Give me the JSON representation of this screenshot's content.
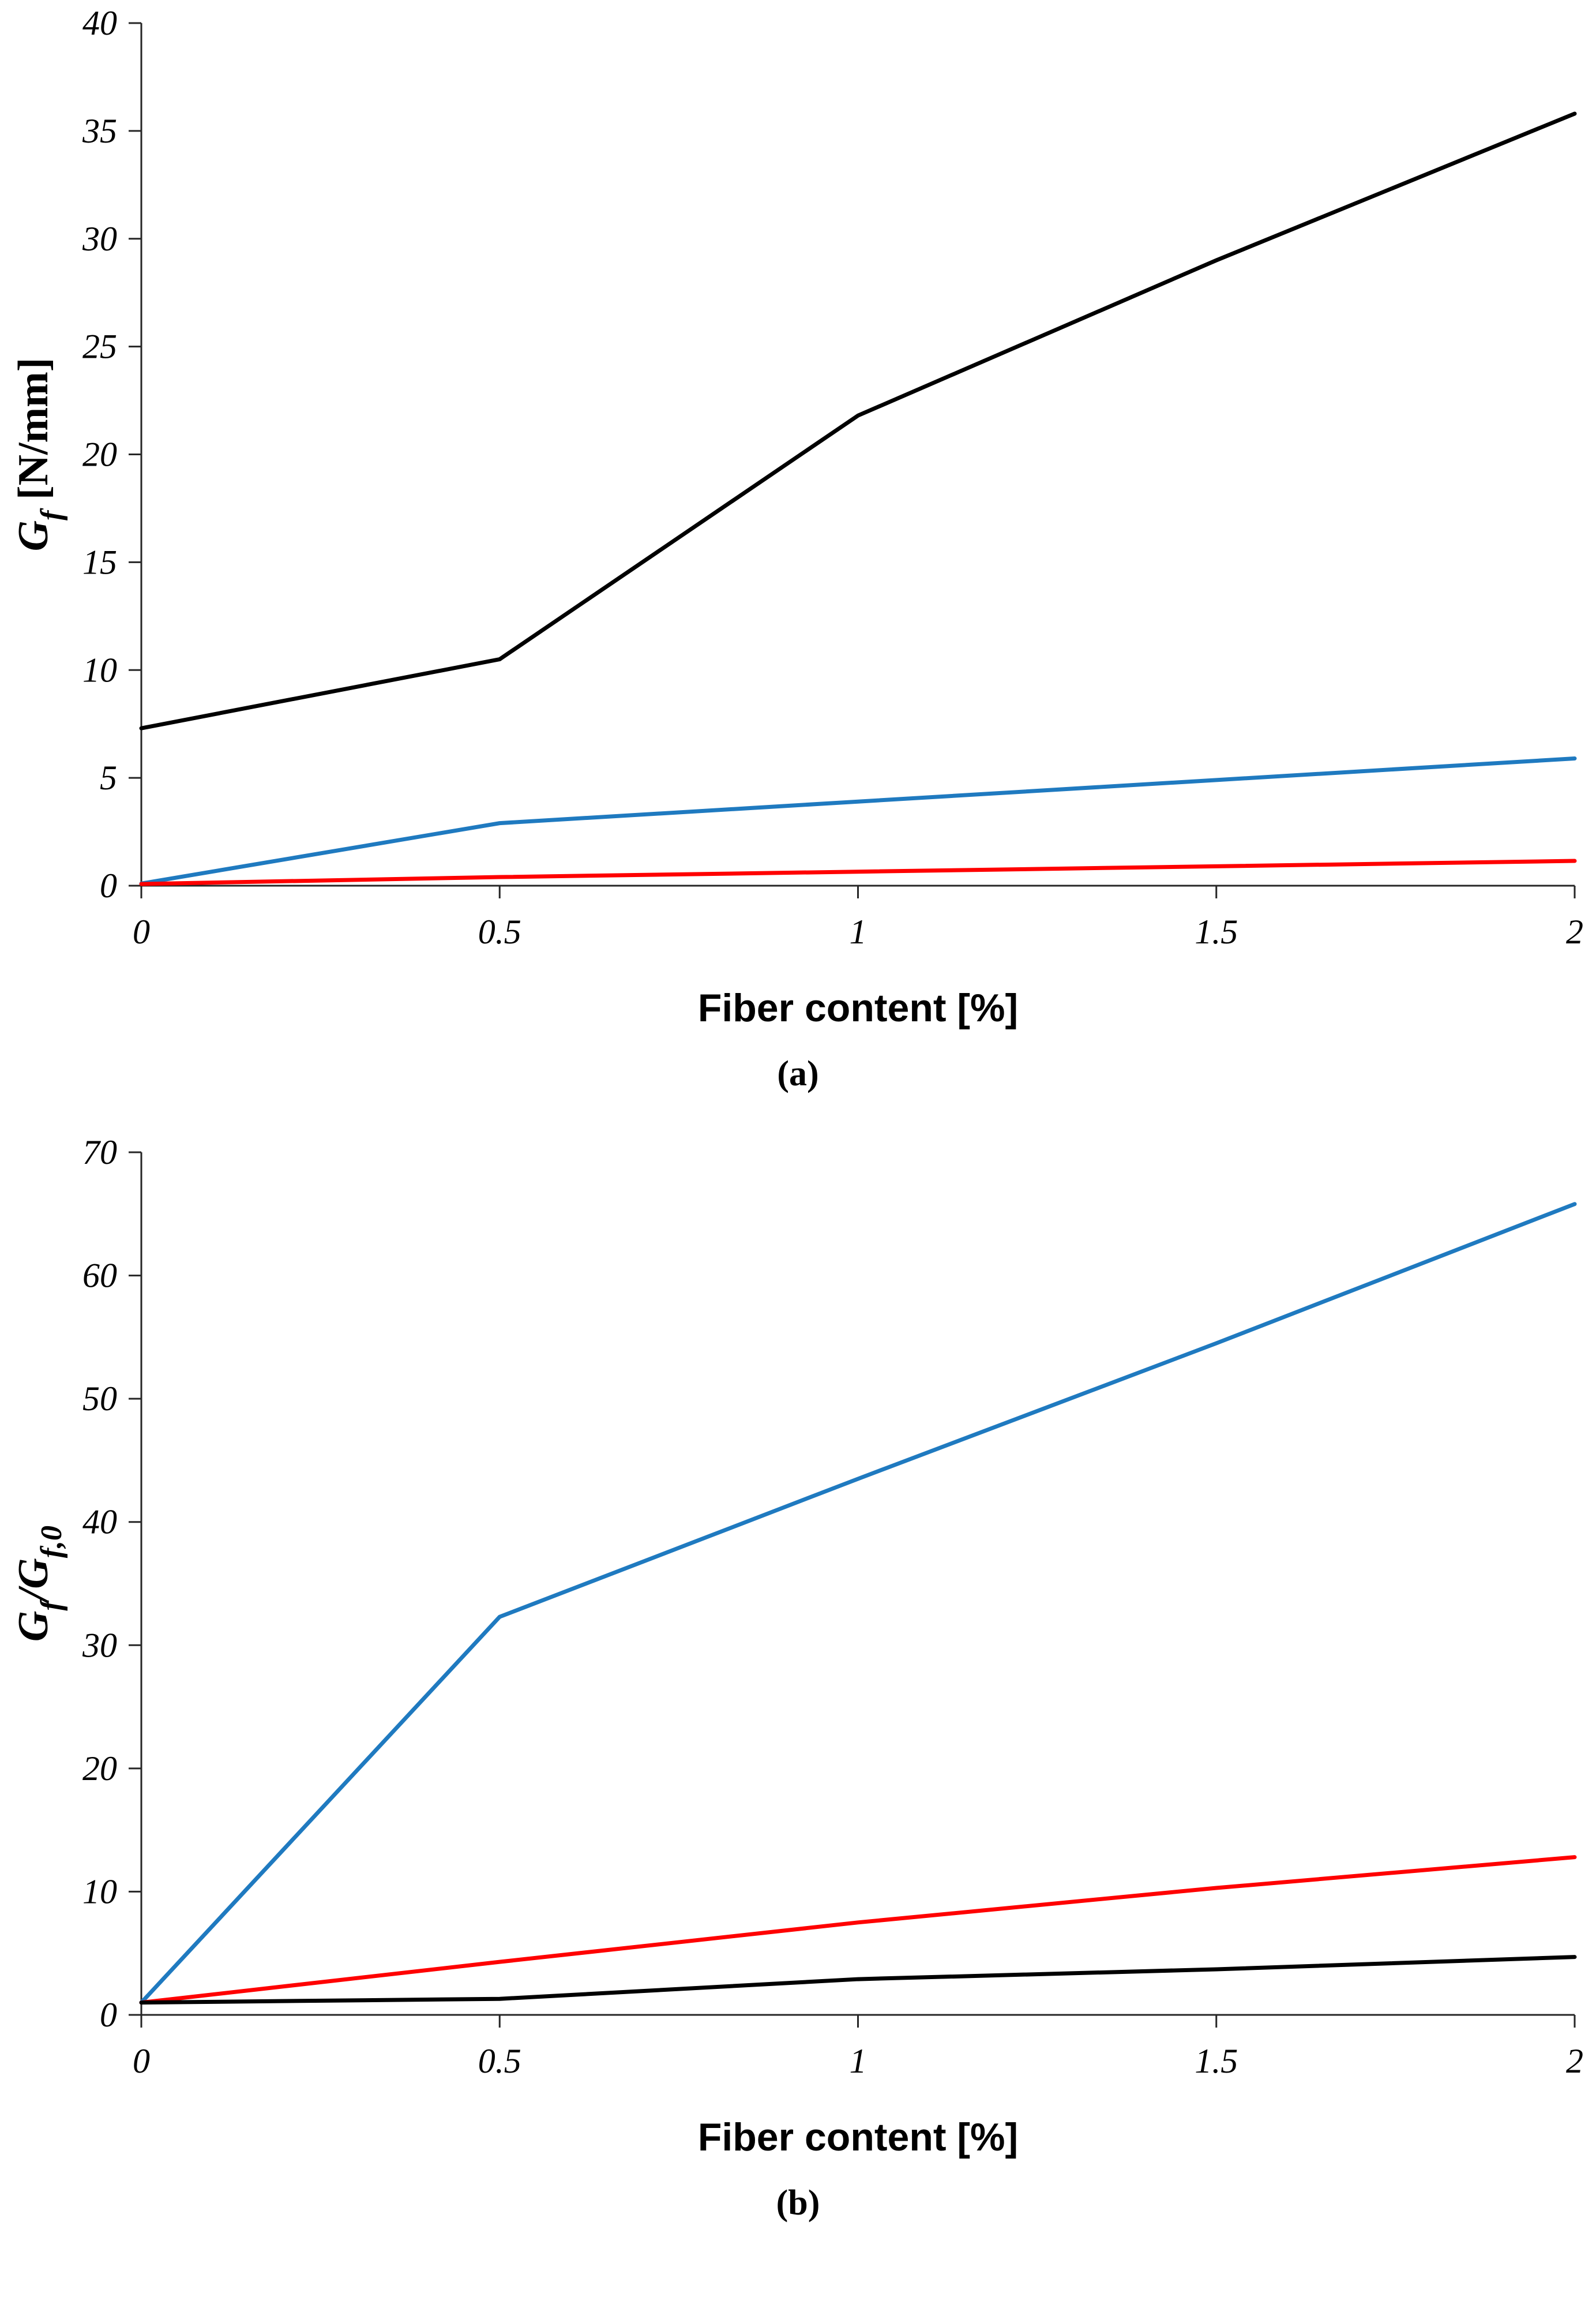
{
  "captions": {
    "a": "(a)",
    "b": "(b)"
  },
  "chart_data": [
    {
      "type": "line",
      "title": "",
      "xlabel": "Fiber content [%]",
      "ylabel": "Gf [N/mm]",
      "ylabel_rich": [
        {
          "t": "G",
          "italic": true
        },
        {
          "t": "f",
          "italic": true,
          "sub": true
        },
        {
          "t": " [N/mm]",
          "italic": false
        }
      ],
      "xlim": [
        0,
        2
      ],
      "ylim": [
        0,
        40
      ],
      "xticks": [
        0,
        0.5,
        1,
        1.5,
        2
      ],
      "yticks": [
        0,
        5,
        10,
        15,
        20,
        25,
        30,
        35,
        40
      ],
      "grid": false,
      "legend": "none",
      "axis_color": "#262626",
      "x": [
        0,
        0.5,
        1,
        1.5,
        2
      ],
      "series": [
        {
          "name": "black",
          "color": "#000000",
          "values": [
            7.3,
            10.5,
            21.8,
            29.0,
            35.8
          ]
        },
        {
          "name": "blue",
          "color": "#1F7AC0",
          "values": [
            0.1,
            2.9,
            3.9,
            4.9,
            5.9
          ]
        },
        {
          "name": "red",
          "color": "#FF0000",
          "values": [
            0.08,
            0.4,
            0.65,
            0.9,
            1.15
          ]
        }
      ]
    },
    {
      "type": "line",
      "title": "",
      "xlabel": "Fiber content [%]",
      "ylabel": "Gf/Gf,0",
      "ylabel_rich": [
        {
          "t": "G",
          "italic": true
        },
        {
          "t": "f",
          "italic": true,
          "sub": true
        },
        {
          "t": "/",
          "italic": true
        },
        {
          "t": "G",
          "italic": true
        },
        {
          "t": "f,0",
          "italic": true,
          "sub": true
        }
      ],
      "xlim": [
        0,
        2
      ],
      "ylim": [
        0,
        70
      ],
      "xticks": [
        0,
        0.5,
        1,
        1.5,
        2
      ],
      "yticks": [
        0,
        10,
        20,
        30,
        40,
        50,
        60,
        70
      ],
      "grid": false,
      "legend": "none",
      "axis_color": "#262626",
      "x": [
        0,
        0.5,
        1,
        1.5,
        2
      ],
      "series": [
        {
          "name": "blue",
          "color": "#1F7AC0",
          "values": [
            1.0,
            32.3,
            43.5,
            54.5,
            65.8
          ]
        },
        {
          "name": "red",
          "color": "#FF0000",
          "values": [
            1.0,
            4.3,
            7.5,
            10.3,
            12.8
          ]
        },
        {
          "name": "black",
          "color": "#000000",
          "values": [
            1.0,
            1.3,
            2.9,
            3.7,
            4.7
          ]
        }
      ]
    }
  ]
}
